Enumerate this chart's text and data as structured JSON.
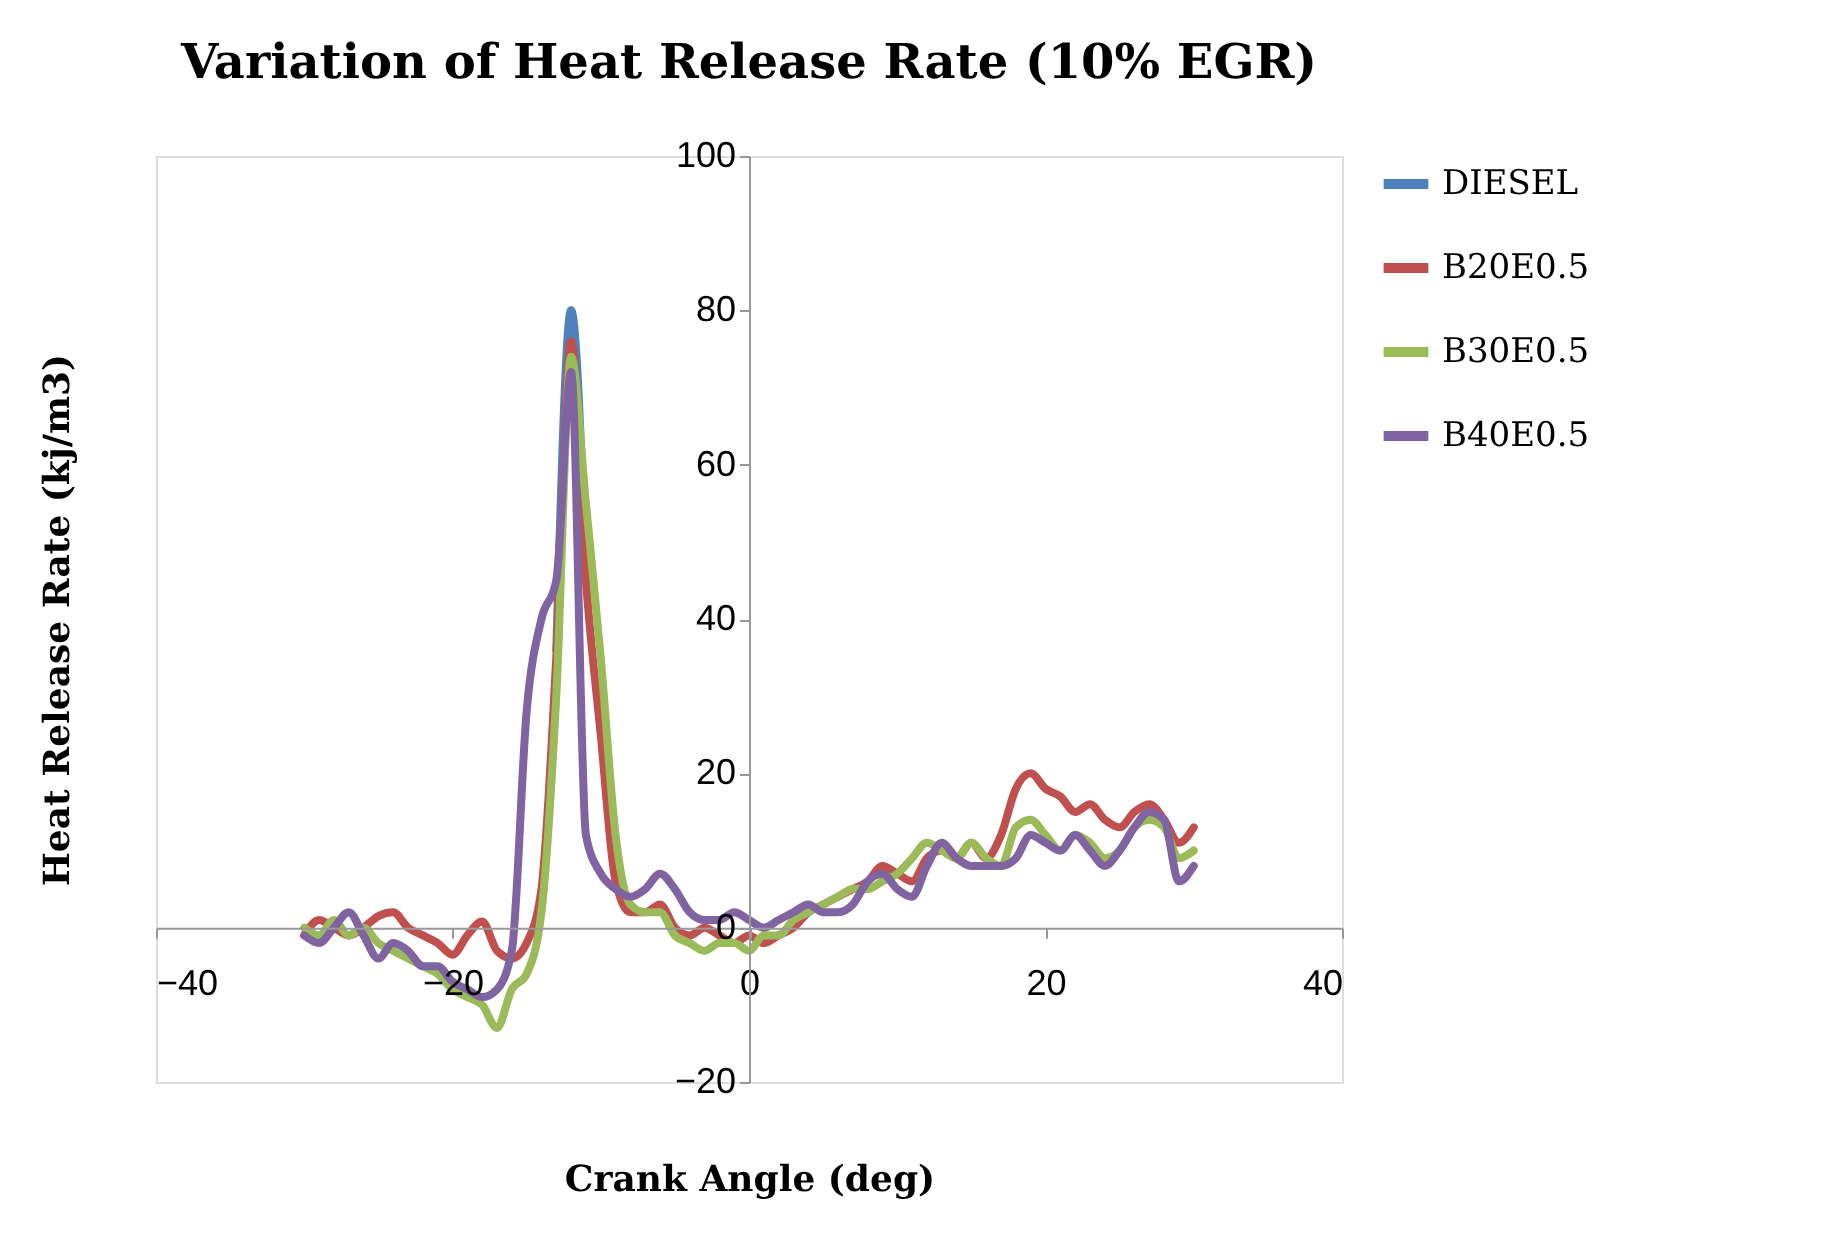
{
  "chart_data": {
    "type": "line",
    "title": "Variation of Heat Release Rate (10% EGR)",
    "xlabel": "Crank Angle (deg)",
    "ylabel": "Heat Release Rate (kj/m3)",
    "x": [
      -30,
      -29,
      -28,
      -27,
      -26,
      -25,
      -24,
      -23,
      -22,
      -21,
      -20,
      -19,
      -18,
      -17,
      -16,
      -15,
      -14,
      -13,
      -12,
      -11,
      -10,
      -9,
      -8,
      -7,
      -6,
      -5,
      -4,
      -3,
      -2,
      -1,
      0,
      1,
      2,
      3,
      4,
      5,
      6,
      7,
      8,
      9,
      10,
      11,
      12,
      13,
      14,
      15,
      16,
      17,
      18,
      19,
      20,
      21,
      22,
      23,
      24,
      25,
      26,
      27,
      28,
      29,
      30
    ],
    "series": [
      {
        "name": "DIESEL",
        "color": "#4f81bd",
        "values": [
          null,
          null,
          null,
          null,
          null,
          null,
          null,
          null,
          null,
          null,
          null,
          null,
          null,
          null,
          null,
          null,
          null,
          36,
          80,
          46,
          null,
          null,
          null,
          null,
          null,
          null,
          null,
          null,
          null,
          null,
          null,
          null,
          null,
          null,
          null,
          null,
          null,
          null,
          null,
          null,
          null,
          null,
          null,
          null,
          null,
          null,
          null,
          null,
          null,
          null,
          null,
          null,
          null,
          null,
          null,
          null,
          null,
          null,
          null,
          null,
          null
        ]
      },
      {
        "name": "B20E0.5",
        "color": "#c0504d",
        "values": [
          -1,
          1,
          0,
          -1,
          0,
          1.5,
          2,
          0,
          -1,
          -2,
          -3.5,
          -1,
          0.8,
          -3,
          -4,
          -2,
          5,
          35,
          76,
          45,
          25,
          6,
          2,
          2,
          3,
          0,
          -1,
          0,
          -1,
          -2,
          -1,
          -2,
          -1,
          0,
          2,
          3,
          4,
          5,
          6,
          8,
          7,
          6,
          9,
          10,
          9,
          11,
          9,
          12,
          18,
          20,
          18,
          17,
          15,
          16,
          14,
          13,
          15,
          16,
          14,
          11,
          13
        ]
      },
      {
        "name": "B30E0.5",
        "color": "#9bbb59",
        "values": [
          0,
          -1,
          1,
          -1,
          0,
          -2,
          -3,
          -4,
          -5,
          -6,
          -8,
          -9,
          -10,
          -13,
          -8,
          -6,
          2,
          30,
          74,
          55,
          35,
          12,
          3,
          2,
          2,
          -1,
          -2,
          -3,
          -2,
          -2,
          -3,
          -1,
          -1,
          1,
          2,
          3,
          4,
          5,
          5,
          6,
          7,
          9,
          11,
          10,
          9,
          11,
          9,
          8,
          13,
          14,
          12,
          10,
          12,
          11,
          9,
          10,
          13,
          14,
          13,
          9,
          10
        ]
      },
      {
        "name": "B40E0.5",
        "color": "#8064a2",
        "values": [
          -1,
          -2,
          0,
          2,
          -1,
          -4,
          -2,
          -3,
          -5,
          -5,
          -7,
          -8,
          -9,
          -8,
          -3,
          28,
          40,
          45,
          72,
          12,
          7,
          5,
          4,
          5,
          7,
          5,
          2,
          1,
          1,
          2,
          1,
          0,
          1,
          2,
          3,
          2,
          2,
          3,
          6,
          7,
          5,
          4,
          8,
          11,
          9,
          8,
          8,
          8,
          9,
          12,
          11,
          10,
          12,
          10,
          8,
          10,
          13,
          15,
          14,
          6,
          8
        ]
      }
    ],
    "xlim": [
      -40,
      40
    ],
    "xticks": [
      -40,
      -20,
      0,
      20,
      40
    ],
    "ylim": [
      -20,
      100
    ],
    "yticks": [
      -20,
      0,
      20,
      40,
      60,
      80,
      100
    ],
    "grid": false,
    "legend": "right",
    "marker": "none",
    "line_style": "solid"
  }
}
